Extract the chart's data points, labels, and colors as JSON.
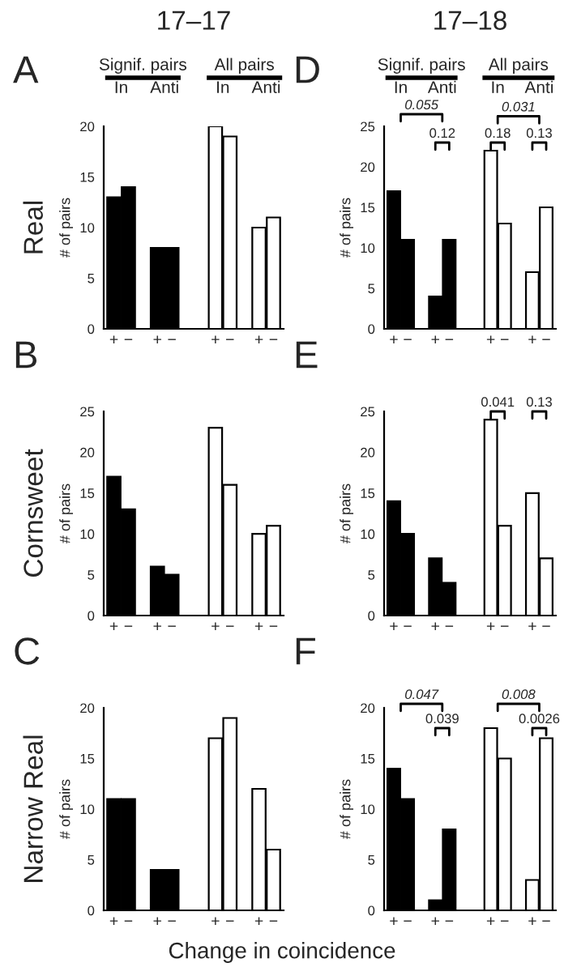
{
  "chart_data": [
    {
      "type": "bar",
      "title": "A",
      "subtitle": "17–17",
      "ylabel": "# of pairs",
      "categories": [
        "+",
        "−",
        null,
        "+",
        "−",
        null,
        null,
        "+",
        "−",
        null,
        "+",
        "−"
      ],
      "values": [
        13,
        14,
        null,
        8,
        8,
        null,
        null,
        20,
        19,
        null,
        10,
        11
      ],
      "colors": [
        "#000000",
        "#000000",
        null,
        "#000000",
        "#000000",
        null,
        null,
        "#ffffff",
        "#ffffff",
        null,
        "#ffffff",
        "#ffffff"
      ],
      "ylim": [
        0,
        20
      ],
      "yticks": [
        0,
        5,
        10,
        15,
        20
      ],
      "grid": false,
      "legend": false,
      "annotations": [
        "Real",
        "Signif. pairs",
        "In",
        "Anti",
        "All pairs",
        "In",
        "Anti"
      ]
    },
    {
      "type": "bar",
      "title": "D",
      "subtitle": "17–18",
      "ylabel": "# of pairs",
      "categories": [
        "+",
        "−",
        null,
        "+",
        "−",
        null,
        null,
        "+",
        "−",
        null,
        "+",
        "−"
      ],
      "values": [
        17,
        11,
        null,
        4,
        11,
        null,
        null,
        22,
        13,
        null,
        7,
        15
      ],
      "colors": [
        "#000000",
        "#000000",
        null,
        "#000000",
        "#000000",
        null,
        null,
        "#ffffff",
        "#ffffff",
        null,
        "#ffffff",
        "#ffffff"
      ],
      "ylim": [
        0,
        25
      ],
      "yticks": [
        0,
        5,
        10,
        15,
        20,
        25
      ],
      "grid": false,
      "legend": false,
      "annotations": [
        "Signif. pairs",
        "In",
        "Anti",
        "All pairs",
        "In",
        "Anti",
        "0.055",
        "0.12",
        "0.031",
        "0.18",
        "0.13"
      ]
    },
    {
      "type": "bar",
      "title": "B",
      "ylabel": "# of pairs",
      "categories": [
        "+",
        "−",
        null,
        "+",
        "−",
        null,
        null,
        "+",
        "−",
        null,
        "+",
        "−"
      ],
      "values": [
        17,
        13,
        null,
        6,
        5,
        null,
        null,
        23,
        16,
        null,
        10,
        11
      ],
      "colors": [
        "#000000",
        "#000000",
        null,
        "#000000",
        "#000000",
        null,
        null,
        "#ffffff",
        "#ffffff",
        null,
        "#ffffff",
        "#ffffff"
      ],
      "ylim": [
        0,
        25
      ],
      "yticks": [
        0,
        5,
        10,
        15,
        20,
        25
      ],
      "grid": false,
      "legend": false,
      "annotations": [
        "Cornsweet"
      ]
    },
    {
      "type": "bar",
      "title": "E",
      "ylabel": "# of pairs",
      "categories": [
        "+",
        "−",
        null,
        "+",
        "−",
        null,
        null,
        "+",
        "−",
        null,
        "+",
        "−"
      ],
      "values": [
        14,
        10,
        null,
        7,
        4,
        null,
        null,
        24,
        11,
        null,
        15,
        7
      ],
      "colors": [
        "#000000",
        "#000000",
        null,
        "#000000",
        "#000000",
        null,
        null,
        "#ffffff",
        "#ffffff",
        null,
        "#ffffff",
        "#ffffff"
      ],
      "ylim": [
        0,
        25
      ],
      "yticks": [
        0,
        5,
        10,
        15,
        20,
        25
      ],
      "grid": false,
      "legend": false,
      "annotations": [
        "0.041",
        "0.13"
      ]
    },
    {
      "type": "bar",
      "title": "C",
      "ylabel": "# of pairs",
      "xlabel": "Change in coincidence",
      "categories": [
        "+",
        "−",
        null,
        "+",
        "−",
        null,
        null,
        "+",
        "−",
        null,
        "+",
        "−"
      ],
      "values": [
        11,
        11,
        null,
        4,
        4,
        null,
        null,
        17,
        19,
        null,
        12,
        6
      ],
      "colors": [
        "#000000",
        "#000000",
        null,
        "#000000",
        "#000000",
        null,
        null,
        "#ffffff",
        "#ffffff",
        null,
        "#ffffff",
        "#ffffff"
      ],
      "ylim": [
        0,
        20
      ],
      "yticks": [
        0,
        5,
        10,
        15,
        20
      ],
      "grid": false,
      "legend": false,
      "annotations": [
        "Narrow Real"
      ]
    },
    {
      "type": "bar",
      "title": "F",
      "ylabel": "# of pairs",
      "categories": [
        "+",
        "−",
        null,
        "+",
        "−",
        null,
        null,
        "+",
        "−",
        null,
        "+",
        "−"
      ],
      "values": [
        14,
        11,
        null,
        1,
        8,
        null,
        null,
        18,
        15,
        null,
        3,
        17
      ],
      "colors": [
        "#000000",
        "#000000",
        null,
        "#000000",
        "#000000",
        null,
        null,
        "#ffffff",
        "#ffffff",
        null,
        "#ffffff",
        "#ffffff"
      ],
      "ylim": [
        0,
        20
      ],
      "yticks": [
        0,
        5,
        10,
        15,
        20
      ],
      "grid": false,
      "legend": false,
      "annotations": [
        "0.047",
        "0.039",
        "0.008",
        "0.0026"
      ]
    }
  ]
}
